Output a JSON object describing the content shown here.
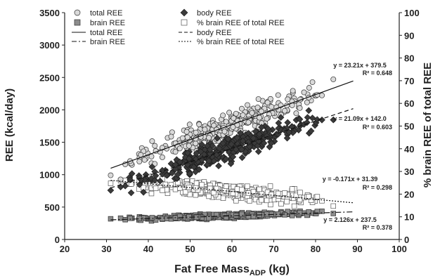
{
  "chart_data": {
    "type": "scatter",
    "xlabel": "Fat Free Mass",
    "xlabel_sub": "ADP",
    "xlabel_unit": " (kg)",
    "ylabel": "REE (kcal/day)",
    "y2label": "% brain REE of total REE",
    "xlim": [
      20,
      100
    ],
    "ylim": [
      0,
      3500
    ],
    "y2lim": [
      0,
      100
    ],
    "x_ticks": [
      20,
      30,
      40,
      50,
      60,
      70,
      80,
      90,
      100
    ],
    "y_ticks": [
      0,
      500,
      1000,
      1500,
      2000,
      2500,
      3000,
      3500
    ],
    "y2_ticks": [
      0,
      10,
      20,
      30,
      40,
      50,
      60,
      70,
      80,
      90,
      100
    ],
    "legend": {
      "placement": "top",
      "items": [
        {
          "label": "total REE",
          "marker": "circle"
        },
        {
          "label": "body REE",
          "marker": "diamond"
        },
        {
          "label": "brain REE",
          "marker": "square-filled"
        },
        {
          "label": "% brain REE of total REE",
          "marker": "square-open"
        },
        {
          "label": "total REE",
          "line": "solid"
        },
        {
          "label": "body REE",
          "line": "dashed"
        },
        {
          "label": "brain REE",
          "line": "dashdot"
        },
        {
          "label": "% brain REE of total REE",
          "line": "dotted"
        }
      ]
    },
    "series": [
      {
        "name": "total REE",
        "axis": "left",
        "marker": "circle",
        "slope": 23.21,
        "intercept": 379.5,
        "x_range": [
          31,
          89
        ],
        "spread": 170,
        "eq": "y = 23.21x + 379.5",
        "r2": "R² = 0.648"
      },
      {
        "name": "body REE",
        "axis": "left",
        "marker": "diamond",
        "slope": 21.09,
        "intercept": 142.0,
        "x_range": [
          31,
          89
        ],
        "spread": 160,
        "eq": "y = 21.09x + 142.0",
        "r2": "R² = 0.603"
      },
      {
        "name": "% brain REE of total REE",
        "axis": "right",
        "marker": "square-open",
        "slope": -0.171,
        "intercept": 31.39,
        "x_range": [
          31,
          89
        ],
        "spread": 2.8,
        "eq": "y = -0.171x + 31.39",
        "r2": "R² = 0.298"
      },
      {
        "name": "brain REE",
        "axis": "left",
        "marker": "square-filled",
        "slope": 2.126,
        "intercept": 237.5,
        "x_range": [
          31,
          89
        ],
        "spread": 30,
        "eq": "y = 2.126x + 237.5",
        "r2": "R² = 0.378"
      }
    ],
    "colors": {
      "circle_fill": "#d9d9d9",
      "diamond_fill": "#3a3a3a",
      "square_filled": "#8c8c8c",
      "square_open_fill": "#ffffff",
      "marker_stroke": "#333333",
      "axis": "#222222"
    }
  }
}
